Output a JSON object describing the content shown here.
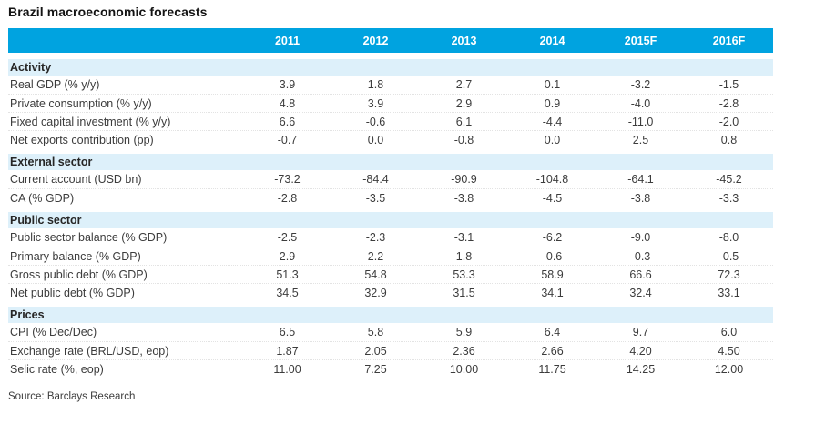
{
  "title": "Brazil macroeconomic forecasts",
  "source_note": "Source: Barclays Research",
  "colors": {
    "header_bg": "#00a3e0",
    "header_text": "#ffffff",
    "section_band_bg": "#ddf0fa",
    "body_text": "#3c3c3c"
  },
  "chart_data": {
    "type": "table",
    "title": "Brazil macroeconomic forecasts",
    "columns": [
      "2011",
      "2012",
      "2013",
      "2014",
      "2015F",
      "2016F"
    ],
    "sections": [
      {
        "name": "Activity",
        "rows": [
          {
            "label": "Real GDP (% y/y)",
            "values": [
              "3.9",
              "1.8",
              "2.7",
              "0.1",
              "-3.2",
              "-1.5"
            ]
          },
          {
            "label": "Private consumption (% y/y)",
            "values": [
              "4.8",
              "3.9",
              "2.9",
              "0.9",
              "-4.0",
              "-2.8"
            ]
          },
          {
            "label": "Fixed capital investment (% y/y)",
            "values": [
              "6.6",
              "-0.6",
              "6.1",
              "-4.4",
              "-11.0",
              "-2.0"
            ]
          },
          {
            "label": "Net exports contribution (pp)",
            "values": [
              "-0.7",
              "0.0",
              "-0.8",
              "0.0",
              "2.5",
              "0.8"
            ]
          }
        ]
      },
      {
        "name": "External sector",
        "rows": [
          {
            "label": "Current account (USD bn)",
            "values": [
              "-73.2",
              "-84.4",
              "-90.9",
              "-104.8",
              "-64.1",
              "-45.2"
            ]
          },
          {
            "label": "CA (% GDP)",
            "values": [
              "-2.8",
              "-3.5",
              "-3.8",
              "-4.5",
              "-3.8",
              "-3.3"
            ]
          }
        ]
      },
      {
        "name": "Public sector",
        "rows": [
          {
            "label": "Public sector balance (% GDP)",
            "values": [
              "-2.5",
              "-2.3",
              "-3.1",
              "-6.2",
              "-9.0",
              "-8.0"
            ]
          },
          {
            "label": "Primary balance (% GDP)",
            "values": [
              "2.9",
              "2.2",
              "1.8",
              "-0.6",
              "-0.3",
              "-0.5"
            ]
          },
          {
            "label": "Gross public debt (% GDP)",
            "values": [
              "51.3",
              "54.8",
              "53.3",
              "58.9",
              "66.6",
              "72.3"
            ]
          },
          {
            "label": "Net public debt (% GDP)",
            "values": [
              "34.5",
              "32.9",
              "31.5",
              "34.1",
              "32.4",
              "33.1"
            ]
          }
        ]
      },
      {
        "name": "Prices",
        "rows": [
          {
            "label": "CPI (% Dec/Dec)",
            "values": [
              "6.5",
              "5.8",
              "5.9",
              "6.4",
              "9.7",
              "6.0"
            ]
          },
          {
            "label": "Exchange rate (BRL/USD, eop)",
            "values": [
              "1.87",
              "2.05",
              "2.36",
              "2.66",
              "4.20",
              "4.50"
            ]
          },
          {
            "label": "Selic rate (%, eop)",
            "values": [
              "11.00",
              "7.25",
              "10.00",
              "11.75",
              "14.25",
              "12.00"
            ]
          }
        ]
      }
    ],
    "source": "Source: Barclays Research"
  }
}
